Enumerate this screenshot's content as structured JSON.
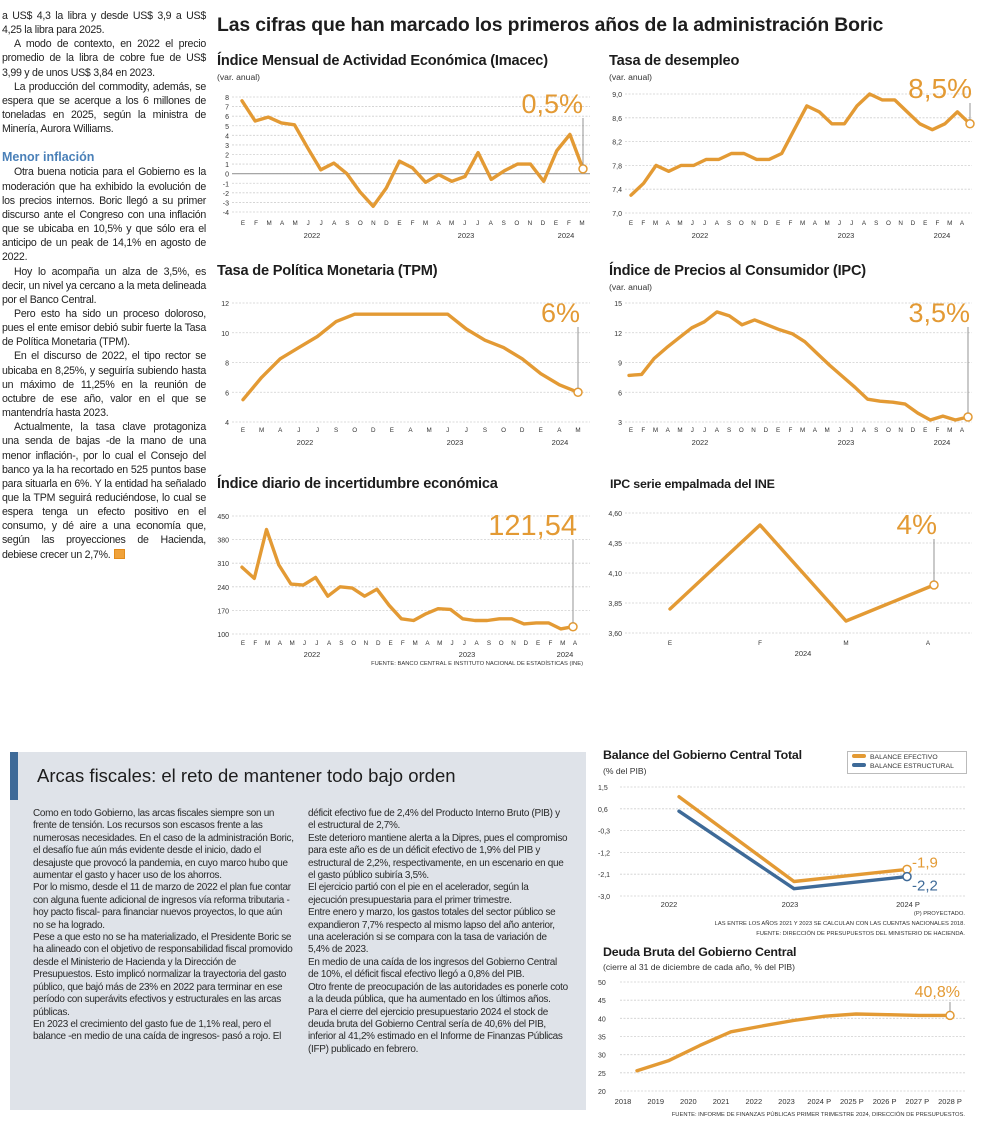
{
  "header": {
    "title": "Las cifras que han marcado los primeros años de la administración Boric"
  },
  "left_column": {
    "paragraphs_a": [
      "a US$ 4,3 la libra y desde US$ 3,9 a US$ 4,25 la libra para 2025.",
      "A modo de contexto, en 2022 el precio promedio de la libra de cobre fue de US$ 3,99 y de unos US$ 3,84 en 2023.",
      "La producción del commodity, además, se espera que se acerque a los 6 millones de toneladas en 2025, según la ministra de Minería, Aurora Williams."
    ],
    "subheading": "Menor inflación",
    "paragraphs_b": [
      "Otra buena noticia para el Gobierno es la moderación que ha exhibido la evolución de los precios internos. Boric llegó a su primer discurso ante el Congreso con una inflación que se ubicaba en 10,5% y que sólo era el anticipo de un peak de 14,1% en agosto de 2022.",
      "Hoy lo acompaña un alza de 3,5%, es decir, un nivel ya cercano a la meta delineada por el Banco Central.",
      "Pero esto ha sido un proceso doloroso, pues el ente emisor debió subir fuerte la Tasa de Política Monetaria (TPM).",
      "En el discurso de 2022, el tipo rector se ubicaba en 8,25%, y seguiría subiendo hasta un máximo de 11,25% en la reunión de octubre de ese año, valor en el que se mantendría hasta 2023.",
      "Actualmente, la tasa clave protagoniza una senda de bajas -de la mano de una menor inflación-, por lo cual el Consejo del banco ya la ha recortado en 525 puntos base para situarla en 6%. Y la entidad ha señalado que la TPM seguirá reduciéndose, lo cual se espera tenga un efecto positivo en el consumo, y dé aire a una economía que, según las proyecciones de Hacienda, debiese crecer un 2,7%."
    ]
  },
  "fiscal_section": {
    "title": "Arcas fiscales: el reto de mantener todo bajo orden",
    "paragraphs": [
      "Como en todo Gobierno, las arcas fiscales siempre son un frente de tensión. Los recursos son escasos frente a las numerosas necesidades. En el caso de la administración Boric, el desafío fue aún más evidente desde el inicio, dado el desajuste que provocó la pandemia, en cuyo marco hubo que aumentar el gasto y hacer uso de los ahorros.",
      "Por lo mismo, desde el 11 de marzo de 2022 el plan fue contar con alguna fuente adicional de ingresos vía reforma tributaria -hoy pacto fiscal- para financiar nuevos proyectos, lo que aún no se ha logrado.",
      "Pese a que esto no se ha materializado, el Presidente Boric se ha alineado con el objetivo de responsabilidad fiscal promovido desde el Ministerio de Hacienda y la Dirección de Presupuestos. Esto implicó normalizar la trayectoria del gasto público, que bajó más de 23% en 2022 para terminar en ese período con superávits efectivos y estructurales en las arcas públicas.",
      "En 2023 el crecimiento del gasto fue de 1,1% real, pero el balance -en medio de una caída de ingresos- pasó a rojo. El déficit efectivo fue de 2,4% del Producto Interno Bruto (PIB) y el estructural de 2,7%.",
      "Este deterioro mantiene alerta a la Dipres, pues el compromiso para este año es de un déficit efectivo de 1,9% del PIB y estructural de 2,2%, respectivamente, en un escenario en que el gasto público subiría 3,5%.",
      "El ejercicio partió con el pie en el acelerador, según la ejecución presupuestaria para el primer trimestre.",
      "Entre enero y marzo, los gastos totales del sector público se expandieron 7,7% respecto al mismo lapso del año anterior, una aceleración si se compara con la tasa de variación de 5,4% de 2023.",
      "En medio de una caída de los ingresos del Gobierno Central de 10%, el déficit fiscal efectivo llegó a 0,8% del PIB.",
      "Otro frente de preocupación de las autoridades es ponerle coto a la deuda pública, que ha aumentado en los últimos años.",
      "Para el cierre del ejercicio presupuestario 2024 el stock de deuda bruta del Gobierno Central sería de 40,6% del PIB, inferior al 41,2% estimado en el Informe de Finanzas Públicas (IFP) publicado en febrero."
    ]
  },
  "colors": {
    "accent_orange": "#e39a34",
    "structural_blue": "#3e6a98",
    "subheading_blue": "#4a80b8",
    "box_gray": "#dfe3e9"
  },
  "chart_data": [
    {
      "type": "line",
      "title": "Índice Mensual de Actividad Económica (Imacec)",
      "subtitle": "(var. anual)",
      "y_ticks": [
        "8",
        "7",
        "6",
        "5",
        "4",
        "3",
        "2",
        "1",
        "0",
        "-1",
        "-2",
        "-3",
        "-4"
      ],
      "ylim": [
        -4,
        8
      ],
      "x": [
        "E",
        "F",
        "M",
        "A",
        "M",
        "J",
        "J",
        "A",
        "S",
        "O",
        "N",
        "D",
        "E",
        "F",
        "M",
        "A",
        "M",
        "J",
        "J",
        "A",
        "S",
        "O",
        "N",
        "D",
        "E",
        "F",
        "M"
      ],
      "years": [
        "2022",
        "2023",
        "2024"
      ],
      "series": [
        {
          "values": [
            7.6,
            5.5,
            5.9,
            5.3,
            5.1,
            2.7,
            0.4,
            1.1,
            0.0,
            -1.9,
            -3.4,
            -1.5,
            1.3,
            0.6,
            -0.9,
            -0.1,
            -0.8,
            -0.3,
            2.2,
            -0.6,
            0.3,
            1.0,
            1.0,
            -0.8,
            2.4,
            4.1,
            0.5
          ]
        }
      ],
      "callout": "0,5%",
      "grid": true
    },
    {
      "type": "line",
      "title": "Tasa de desempleo",
      "subtitle": "(var. anual)",
      "y_ticks": [
        "9,0",
        "8,6",
        "8,2",
        "7,8",
        "7,4",
        "7,0"
      ],
      "ylim": [
        7.0,
        9.0
      ],
      "x": [
        "E",
        "F",
        "M",
        "A",
        "M",
        "J",
        "J",
        "A",
        "S",
        "O",
        "N",
        "D",
        "E",
        "F",
        "M",
        "A",
        "M",
        "J",
        "J",
        "A",
        "S",
        "O",
        "N",
        "D",
        "E",
        "F",
        "M",
        "A"
      ],
      "years": [
        "2022",
        "2023",
        "2024"
      ],
      "series": [
        {
          "values": [
            7.3,
            7.5,
            7.8,
            7.7,
            7.8,
            7.8,
            7.9,
            7.9,
            8.0,
            8.0,
            7.9,
            7.9,
            8.0,
            8.4,
            8.8,
            8.7,
            8.5,
            8.5,
            8.8,
            9.0,
            8.9,
            8.9,
            8.7,
            8.5,
            8.4,
            8.5,
            8.7,
            8.5
          ]
        }
      ],
      "callout": "8,5%",
      "grid": true
    },
    {
      "type": "line",
      "title": "Tasa de Política Monetaria (TPM)",
      "subtitle": "",
      "y_ticks": [
        "12",
        "10",
        "8",
        "6",
        "4"
      ],
      "ylim": [
        4,
        12
      ],
      "x": [
        "E",
        "M",
        "A",
        "J",
        "J",
        "S",
        "O",
        "D",
        "E",
        "A",
        "M",
        "J",
        "J",
        "S",
        "O",
        "D",
        "E",
        "A",
        "M"
      ],
      "years": [
        "2022",
        "2023",
        "2024"
      ],
      "series": [
        {
          "values": [
            5.5,
            7.0,
            8.25,
            9.0,
            9.75,
            10.75,
            11.25,
            11.25,
            11.25,
            11.25,
            11.25,
            11.25,
            10.25,
            9.5,
            9.0,
            8.25,
            7.25,
            6.5,
            6.0
          ]
        }
      ],
      "callout": "6%",
      "grid": true
    },
    {
      "type": "line",
      "title": "Índice de Precios al Consumidor (IPC)",
      "subtitle": "(var. anual)",
      "y_ticks": [
        "15",
        "12",
        "9",
        "6",
        "3"
      ],
      "ylim": [
        3,
        15
      ],
      "x": [
        "E",
        "F",
        "M",
        "A",
        "M",
        "J",
        "J",
        "A",
        "S",
        "O",
        "N",
        "D",
        "E",
        "F",
        "M",
        "A",
        "M",
        "J",
        "J",
        "A",
        "S",
        "O",
        "N",
        "D",
        "E",
        "F",
        "M",
        "A"
      ],
      "years": [
        "2022",
        "2023",
        "2024"
      ],
      "series": [
        {
          "values": [
            7.7,
            7.8,
            9.4,
            10.5,
            11.5,
            12.5,
            13.1,
            14.1,
            13.7,
            12.8,
            13.3,
            12.8,
            12.3,
            11.9,
            11.1,
            9.9,
            8.7,
            7.6,
            6.5,
            5.3,
            5.1,
            5.0,
            4.8,
            3.9,
            3.2,
            3.6,
            3.2,
            3.5
          ]
        }
      ],
      "callout": "3,5%",
      "grid": true
    },
    {
      "type": "line",
      "title": "Índice diario de incertidumbre económica",
      "subtitle": "",
      "y_ticks": [
        "450",
        "380",
        "310",
        "240",
        "170",
        "100"
      ],
      "ylim": [
        100,
        450
      ],
      "x": [
        "E",
        "F",
        "M",
        "A",
        "M",
        "J",
        "J",
        "A",
        "S",
        "O",
        "N",
        "D",
        "E",
        "F",
        "M",
        "A",
        "M",
        "J",
        "J",
        "A",
        "S",
        "O",
        "N",
        "D",
        "E",
        "F",
        "M",
        "A"
      ],
      "years": [
        "2022",
        "2023",
        "2024"
      ],
      "series": [
        {
          "values": [
            298,
            265,
            410,
            305,
            248,
            245,
            268,
            212,
            240,
            236,
            212,
            233,
            185,
            145,
            140,
            160,
            175,
            173,
            145,
            140,
            140,
            145,
            145,
            130,
            133,
            133,
            115,
            121.54
          ]
        }
      ],
      "callout": "121,54",
      "source": "FUENTE: BANCO CENTRAL E INSTITUTO NACIONAL DE ESTADÍSTICAS (INE)",
      "grid": true
    },
    {
      "type": "line",
      "title": "IPC serie empalmada del INE",
      "subtitle": "",
      "y_ticks": [
        "4,60",
        "4,35",
        "4,10",
        "3,85",
        "3,60"
      ],
      "ylim": [
        3.6,
        4.6
      ],
      "x": [
        "E",
        "F",
        "M",
        "A"
      ],
      "years": [
        "2024"
      ],
      "series": [
        {
          "values": [
            3.8,
            4.5,
            3.7,
            4.0
          ]
        }
      ],
      "callout": "4%",
      "grid": true
    },
    {
      "type": "line",
      "title": "Balance del Gobierno Central Total",
      "subtitle": "(% del PIB)",
      "y_ticks": [
        "1,5",
        "0,6",
        "-0,3",
        "-1,2",
        "-2,1",
        "-3,0"
      ],
      "ylim": [
        -3.0,
        1.5
      ],
      "x": [
        "2022",
        "2023",
        "2024 P"
      ],
      "series": [
        {
          "name": "BALANCE EFECTIVO",
          "values": [
            1.1,
            -2.4,
            -1.9
          ],
          "callout": "-1,9"
        },
        {
          "name": "BALANCE ESTRUCTURAL",
          "values": [
            0.5,
            -2.7,
            -2.2
          ],
          "callout": "-2,2"
        }
      ],
      "legend": "top-right",
      "notes": [
        "(P) PROYECTADO.",
        "LAS ENTRE LOS AÑOS 2021 Y 2023 SE CALCULAN  CON LAS CUENTAS NACIONALES 2018.",
        "FUENTE: DIRECCIÓN DE PRESUPUESTOS DEL MINISTERIO DE HACIENDA."
      ],
      "grid": true
    },
    {
      "type": "line",
      "title": "Deuda Bruta del Gobierno Central",
      "subtitle": "(cierre al 31 de diciembre de cada año, % del PIB)",
      "y_ticks": [
        "50",
        "45",
        "40",
        "35",
        "30",
        "25",
        "20"
      ],
      "ylim": [
        20,
        50
      ],
      "x": [
        "2018",
        "2019",
        "2020",
        "2021",
        "2022",
        "2023",
        "2024 P",
        "2025 P",
        "2026 P",
        "2027 P",
        "2028 P"
      ],
      "series": [
        {
          "values": [
            25.6,
            28.3,
            32.5,
            36.3,
            37.9,
            39.4,
            40.6,
            41.2,
            41.0,
            40.8,
            40.8
          ]
        }
      ],
      "callout": "40,8%",
      "source": "FUENTE: INFORME DE FINANZAS PÚBLICAS PRIMER TRIMESTRE 2024, DIRECCIÓN DE PRESUPUESTOS.",
      "grid": true
    }
  ]
}
